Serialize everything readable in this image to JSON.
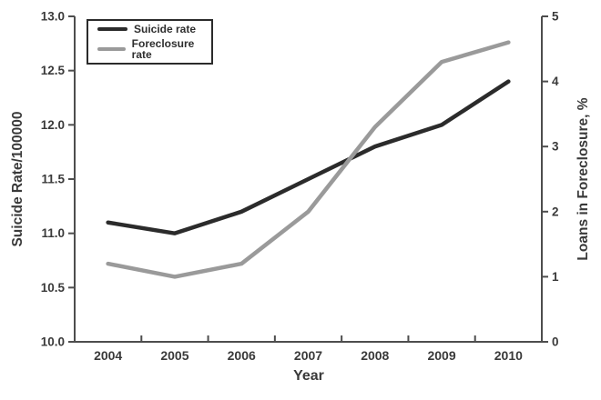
{
  "chart_data": {
    "type": "line",
    "xlabel": "Year",
    "ylabel_left": "Suicide Rate/100000",
    "ylabel_right": "Loans in Foreclosure, %",
    "categories": [
      "2004",
      "2005",
      "2006",
      "2007",
      "2008",
      "2009",
      "2010"
    ],
    "axes": {
      "left": {
        "min": 10.0,
        "max": 13.0,
        "tick_labels": [
          "10.0",
          "10.5",
          "11.0",
          "11.5",
          "12.0",
          "12.5",
          "13.0"
        ]
      },
      "right": {
        "min": 0,
        "max": 5,
        "tick_labels": [
          "0",
          "1",
          "2",
          "3",
          "4",
          "5"
        ]
      }
    },
    "series": [
      {
        "name": "Suicide rate",
        "axis": "left",
        "color": "#2b2b2b",
        "values": [
          11.1,
          11.0,
          11.2,
          11.5,
          11.8,
          12.0,
          12.4
        ]
      },
      {
        "name": "Foreclosure rate",
        "axis": "right",
        "color": "#9a9a9a",
        "values": [
          1.2,
          1.0,
          1.2,
          2.0,
          3.3,
          4.3,
          4.6
        ]
      }
    ],
    "legend": {
      "position": "top-left",
      "items": [
        "Suicide rate",
        "Foreclosure rate"
      ]
    },
    "grid": false
  },
  "colors": {
    "axis": "#4d4d4d",
    "text": "#3a3a3a",
    "background": "#ffffff"
  }
}
